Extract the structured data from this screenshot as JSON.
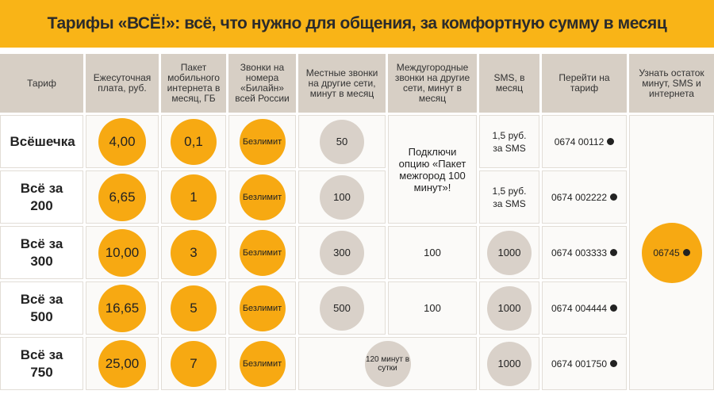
{
  "title": "Тарифы «ВСЁ!»: всё, что нужно для общения, за комфортную сумму в месяц",
  "table": {
    "headers": [
      "Тариф",
      "Ежесуточная плата, руб.",
      "Пакет мобильного интернета в месяц, ГБ",
      "Звонки на номера «Билайн» всей России",
      "Местные звонки на другие сети, минут в месяц",
      "Междугородные звонки на другие сети, минут в месяц",
      "SMS, в месяц",
      "Перейти на тариф",
      "Узнать остаток минут, SMS и интернета"
    ],
    "rows": [
      {
        "name": "Всёшечка",
        "fee": "4,00",
        "gb": "0,1",
        "calls": "Безлимит",
        "local": "50",
        "sms": "1,5 руб. за SMS",
        "code": "0674 00112"
      },
      {
        "name": "Всё за 200",
        "fee": "6,65",
        "gb": "1",
        "calls": "Безлимит",
        "local": "100",
        "sms": "1,5 руб. за SMS",
        "code": "0674 002222"
      },
      {
        "name": "Всё за 300",
        "fee": "10,00",
        "gb": "3",
        "calls": "Безлимит",
        "local": "300",
        "intercity": "100",
        "sms": "1000",
        "code": "0674 003333"
      },
      {
        "name": "Всё за 500",
        "fee": "16,65",
        "gb": "5",
        "calls": "Безлимит",
        "local": "500",
        "intercity": "100",
        "sms": "1000",
        "code": "0674 004444"
      },
      {
        "name": "Всё за 750",
        "fee": "25,00",
        "gb": "7",
        "calls": "Безлимит",
        "local_intercity": "120 минут в сутки",
        "sms": "1000",
        "code": "0674 001750"
      }
    ],
    "intercity_option": "Подключи опцию «Пакет межгород 100 минут»!",
    "balance_code": "06745"
  }
}
